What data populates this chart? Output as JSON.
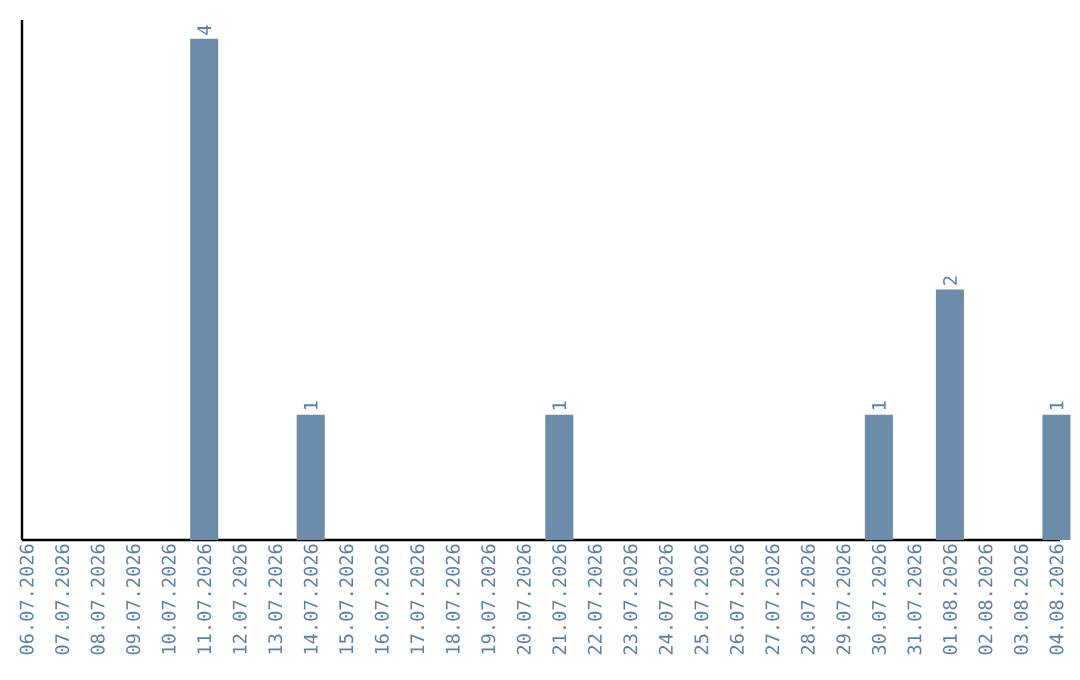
{
  "chart_data": {
    "type": "bar",
    "categories": [
      "06.07.2026",
      "07.07.2026",
      "08.07.2026",
      "09.07.2026",
      "10.07.2026",
      "11.07.2026",
      "12.07.2026",
      "13.07.2026",
      "14.07.2026",
      "15.07.2026",
      "16.07.2026",
      "17.07.2026",
      "18.07.2026",
      "19.07.2026",
      "20.07.2026",
      "21.07.2026",
      "22.07.2026",
      "23.07.2026",
      "24.07.2026",
      "25.07.2026",
      "26.07.2026",
      "27.07.2026",
      "28.07.2026",
      "29.07.2026",
      "30.07.2026",
      "31.07.2026",
      "01.08.2026",
      "02.08.2026",
      "03.08.2026",
      "04.08.2026"
    ],
    "values": [
      0,
      0,
      0,
      0,
      0,
      4,
      0,
      0,
      1,
      0,
      0,
      0,
      0,
      0,
      0,
      1,
      0,
      0,
      0,
      0,
      0,
      0,
      0,
      0,
      1,
      0,
      2,
      0,
      0,
      1
    ],
    "value_labels": [
      null,
      null,
      null,
      null,
      null,
      "4",
      null,
      null,
      "1",
      null,
      null,
      null,
      null,
      null,
      null,
      "1",
      null,
      null,
      null,
      null,
      null,
      null,
      null,
      null,
      "1",
      null,
      "2",
      null,
      null,
      "1"
    ],
    "color": "#6b8cab",
    "ylim": [
      0,
      4.15
    ],
    "tick_labels": "x"
  }
}
